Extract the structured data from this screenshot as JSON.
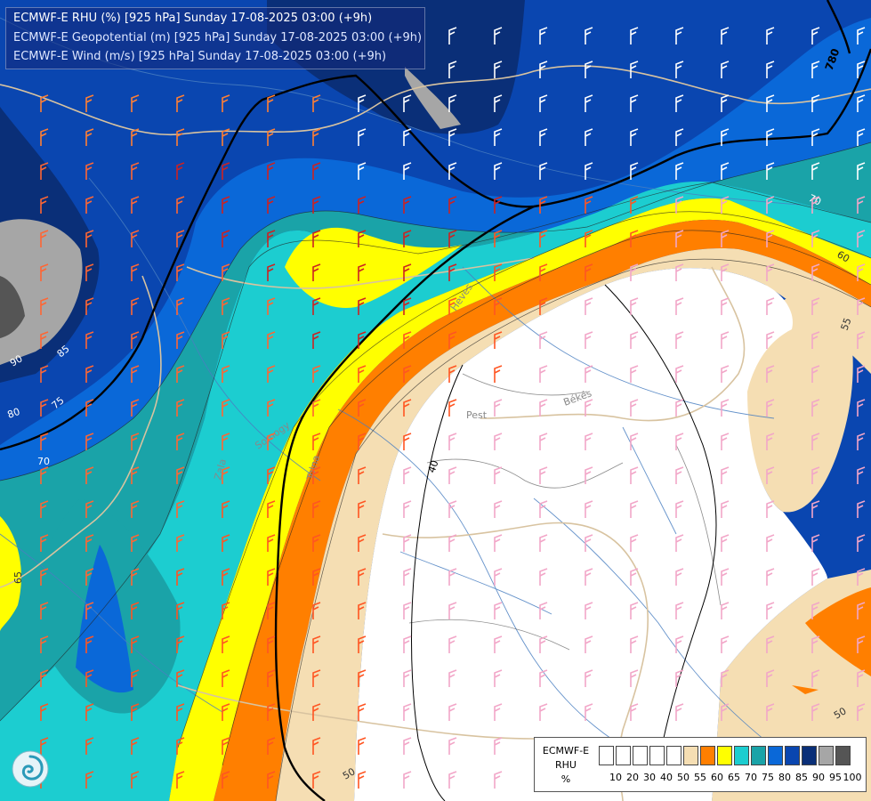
{
  "title": {
    "line1": "ECMWF-E RHU (%) [925 hPa] Sunday 17-08-2025 03:00 (+9h)",
    "line2": "ECMWF-E Geopotential (m) [925 hPa] Sunday 17-08-2025 03:00 (+9h)",
    "line3": "ECMWF-E Wind (m/s) [925 hPa] Sunday 17-08-2025 03:00 (+9h)"
  },
  "legend": {
    "title1": "ECMWF-E",
    "title2": "RHU",
    "unit": "%",
    "colors": [
      "#ffffff",
      "#ffffff",
      "#ffffff",
      "#ffffff",
      "#ffffff",
      "#f5deb3",
      "#ff7f00",
      "#ffff00",
      "#1ccdd0",
      "#1aa3a8",
      "#0a68d8",
      "#0a46b0",
      "#0a2f78",
      "#a6a6a6",
      "#555555"
    ],
    "ticks": [
      "10",
      "20",
      "30",
      "40",
      "50",
      "55",
      "60",
      "65",
      "70",
      "75",
      "80",
      "85",
      "90",
      "95",
      "100"
    ]
  },
  "contour_labels": {
    "rhu": [
      "90",
      "85",
      "80",
      "75",
      "70",
      "70",
      "65",
      "60",
      "55",
      "50",
      "50",
      "40"
    ],
    "geopotential": [
      "780"
    ]
  },
  "place_labels": [
    "Pest",
    "Békés",
    "Heves",
    "Somogy",
    "Tolna",
    "Zala"
  ],
  "icons": [
    "wind-barb-icon",
    "meteo-logo-icon"
  ]
}
